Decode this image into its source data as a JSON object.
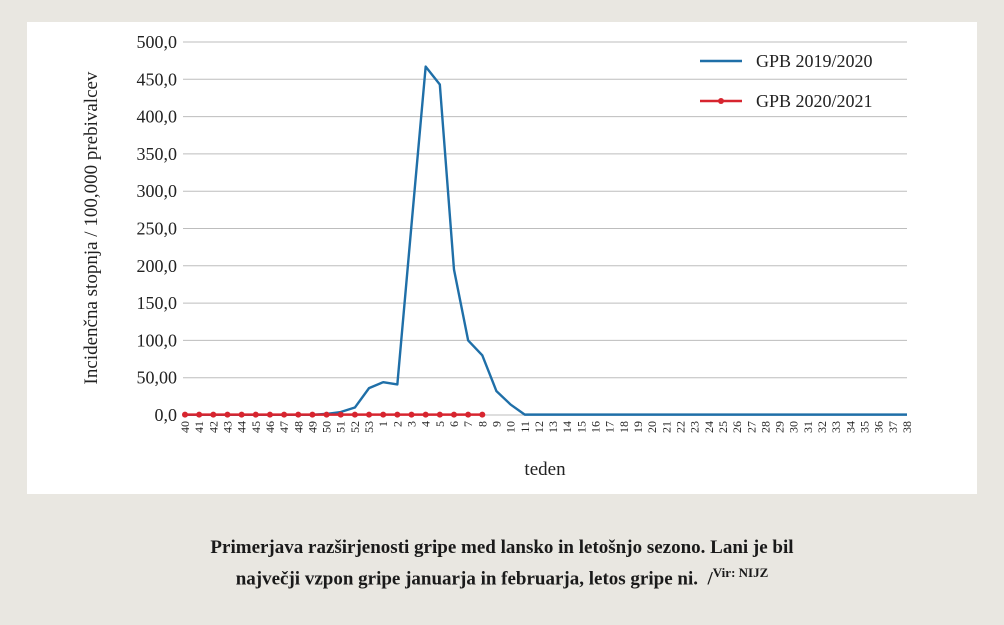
{
  "chart_data": {
    "type": "line",
    "y_label": "Incidenčna stopnja / 100,000 prebivalcev",
    "x_label": "teden",
    "categories": [
      "40",
      "41",
      "42",
      "43",
      "44",
      "45",
      "46",
      "47",
      "48",
      "49",
      "50",
      "51",
      "52",
      "53",
      "1",
      "2",
      "3",
      "4",
      "5",
      "6",
      "7",
      "8",
      "9",
      "10",
      "11",
      "12",
      "13",
      "14",
      "15",
      "16",
      "17",
      "18",
      "19",
      "20",
      "21",
      "22",
      "23",
      "24",
      "25",
      "26",
      "27",
      "28",
      "29",
      "30",
      "31",
      "32",
      "33",
      "34",
      "35",
      "36",
      "37",
      "38"
    ],
    "series": [
      {
        "name": "GPB 2019/2020",
        "color": "#1f6fa8",
        "marker": false,
        "values": [
          0.3,
          0.3,
          0.3,
          0.3,
          0.3,
          0.3,
          0.3,
          0.3,
          0.3,
          0.3,
          1.5,
          4,
          10,
          36,
          44,
          41,
          255,
          467,
          443,
          195,
          100,
          80,
          32,
          14,
          0.5,
          0.5,
          0.5,
          0.5,
          0.5,
          0.5,
          0.5,
          0.5,
          0.5,
          0.5,
          0.5,
          0.5,
          0.5,
          0.5,
          0.5,
          0.5,
          0.5,
          0.5,
          0.5,
          0.5,
          0.5,
          0.5,
          0.5,
          0.5,
          0.5,
          0.5,
          0.5,
          0.5
        ]
      },
      {
        "name": "GPB 2020/2021",
        "color": "#d7252f",
        "marker": true,
        "values": [
          0.5,
          0.5,
          0.5,
          0.5,
          0.5,
          0.5,
          0.5,
          0.5,
          0.5,
          0.5,
          0.5,
          0.5,
          0.5,
          0.5,
          0.5,
          0.5,
          0.5,
          0.5,
          0.5,
          0.5,
          0.5,
          0.5,
          null,
          null,
          null,
          null,
          null,
          null,
          null,
          null,
          null,
          null,
          null,
          null,
          null,
          null,
          null,
          null,
          null,
          null,
          null,
          null,
          null,
          null,
          null,
          null,
          null,
          null,
          null,
          null,
          null,
          null
        ]
      }
    ],
    "ylim": [
      0,
      500
    ],
    "yticks": [
      {
        "value": 0,
        "label": "0,0"
      },
      {
        "value": 50,
        "label": "50,00"
      },
      {
        "value": 100,
        "label": "100,0"
      },
      {
        "value": 150,
        "label": "150,0"
      },
      {
        "value": 200,
        "label": "200,0"
      },
      {
        "value": 250,
        "label": "250,0"
      },
      {
        "value": 300,
        "label": "300,0"
      },
      {
        "value": 350,
        "label": "350,0"
      },
      {
        "value": 400,
        "label": "400,0"
      },
      {
        "value": 450,
        "label": "450,0"
      },
      {
        "value": 500,
        "label": "500,0"
      }
    ],
    "grid": true,
    "legend": "top-right"
  },
  "caption": [
    "Primerjava razširjenosti gripe med lansko in letošnjo sezono. Lani je bil",
    "največji vzpon gripe januarja in februarja, letos gripe ni."
  ],
  "source": {
    "separator": "/",
    "label": "Vir: NIJZ"
  }
}
